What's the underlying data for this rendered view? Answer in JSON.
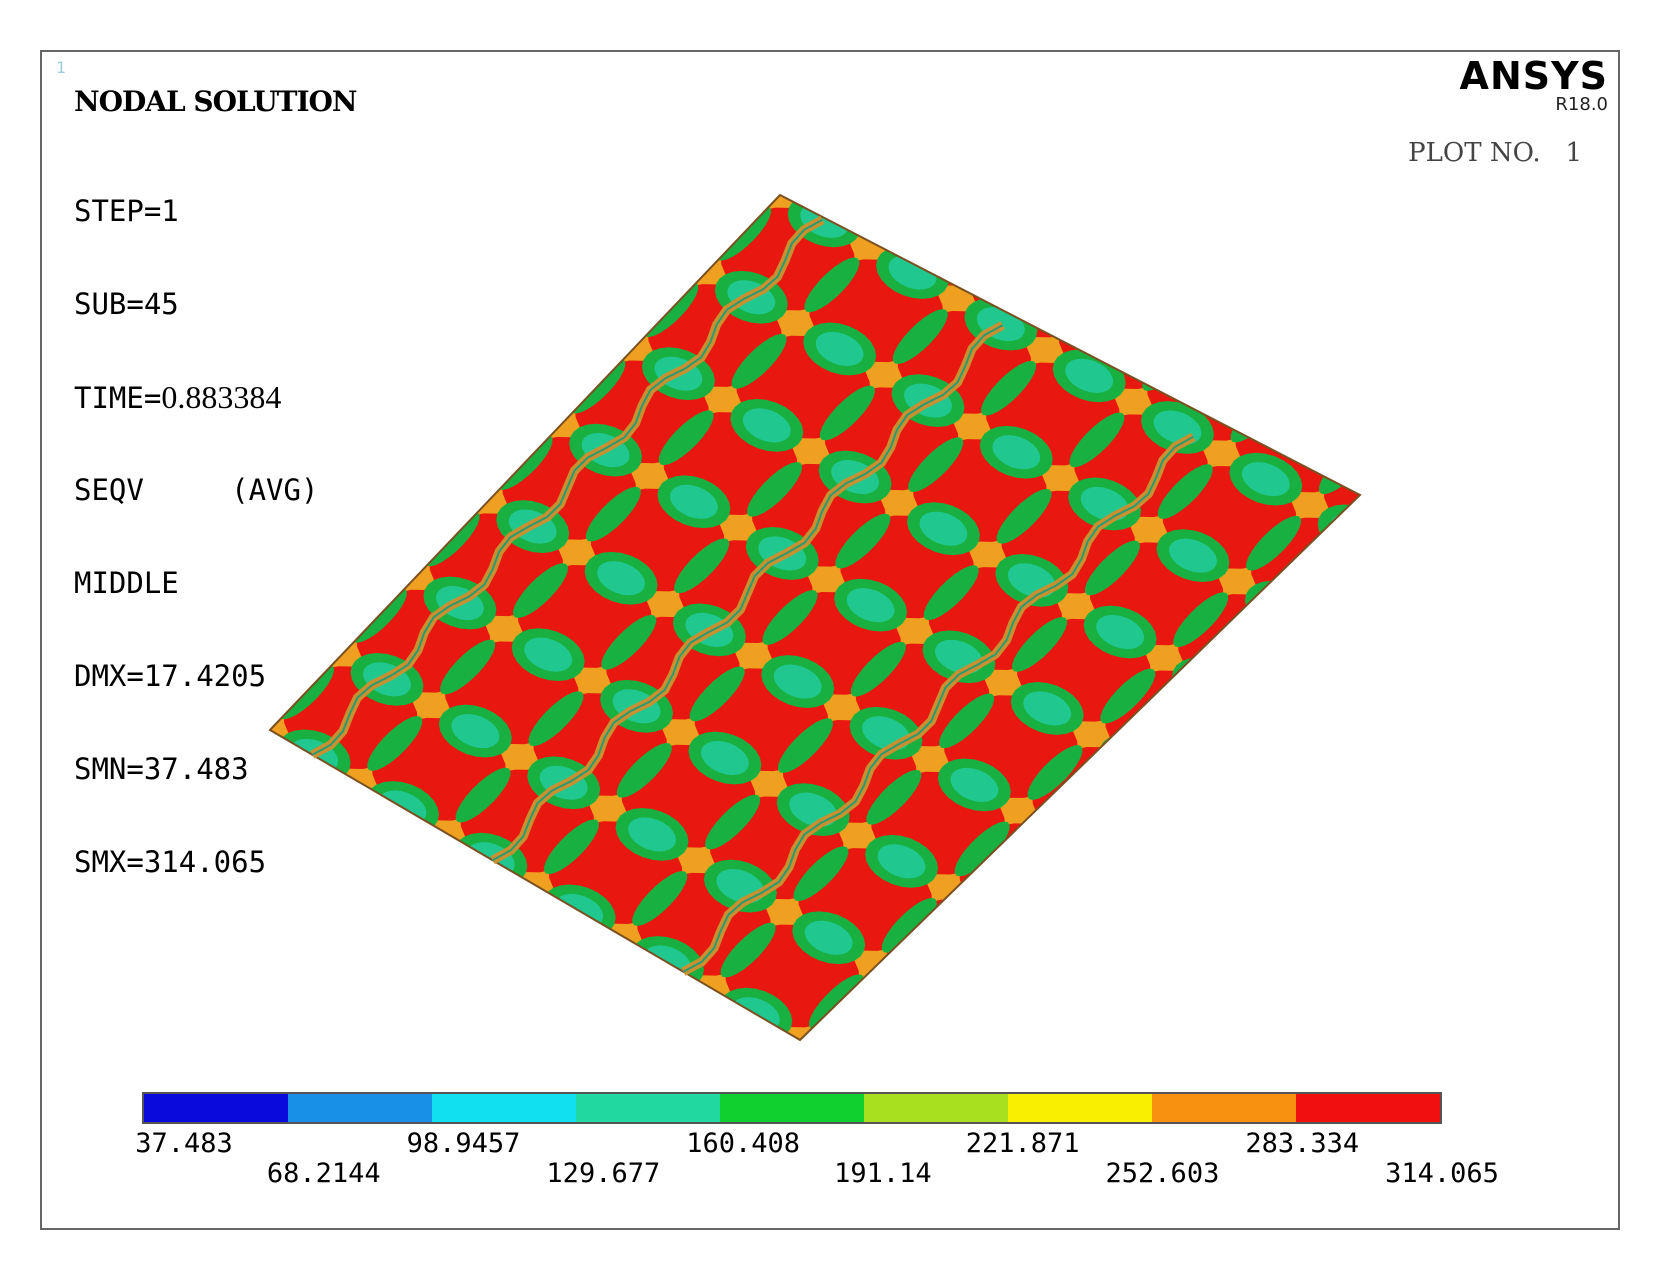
{
  "header": {
    "title": "NODAL SOLUTION",
    "lines": [
      "STEP=1",
      "SUB=45",
      "SEQV     (AVG)",
      "MIDDLE",
      "DMX=17.4205",
      "SMN=37.483",
      "SMX=314.065"
    ],
    "time_label": "TIME=",
    "time_value": "0.883384"
  },
  "brand": {
    "name": "ANSYS",
    "version": "R18.0"
  },
  "plot_label": "PLOT NO.   1",
  "legend": {
    "colors": [
      "#0a0adc",
      "#1890e8",
      "#10e0f0",
      "#20d8a0",
      "#10d030",
      "#a8e020",
      "#f8f000",
      "#f89010",
      "#f01010"
    ],
    "ticks": [
      "37.483",
      "68.2144",
      "98.9457",
      "129.677",
      "160.408",
      "191.14",
      "221.871",
      "252.603",
      "283.334",
      "314.065"
    ]
  },
  "colors": {
    "high_stress": "#e81810",
    "mid_stress": "#f0a020",
    "low_stress": "#20c890",
    "green_band": "#18b040",
    "rib": "#c89030"
  }
}
